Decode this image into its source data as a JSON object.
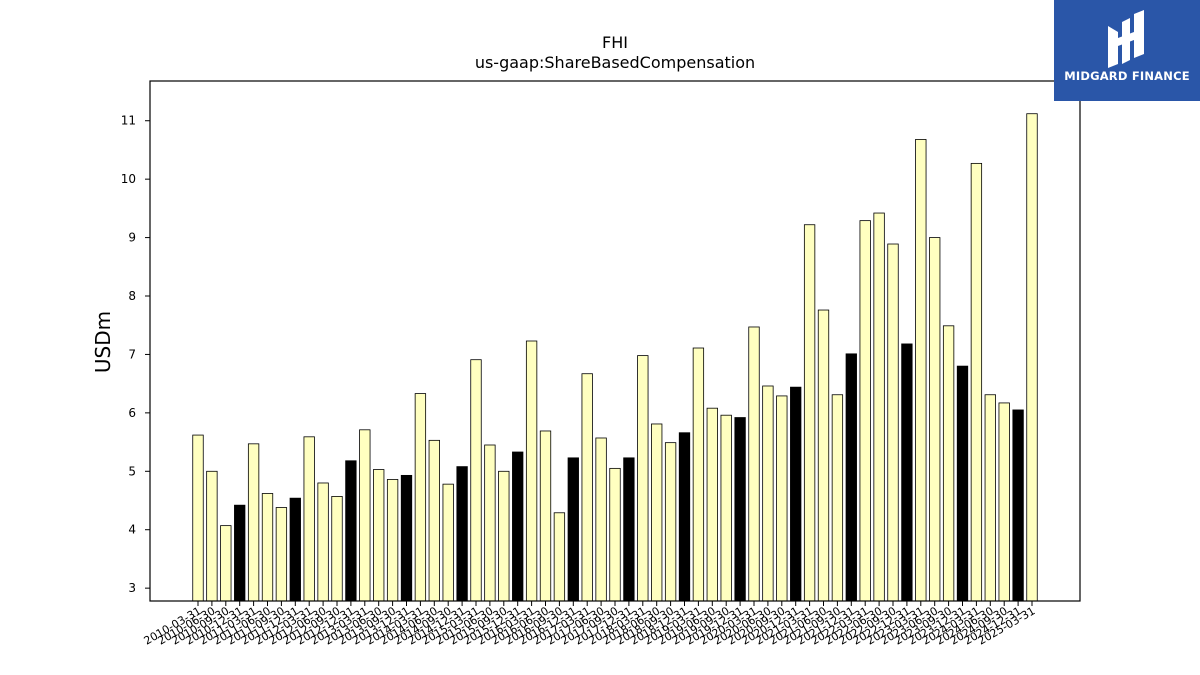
{
  "chart_data": {
    "type": "bar",
    "title": "FHI",
    "subtitle": "us-gaap:ShareBasedCompensation",
    "ylabel": "USDm",
    "xlabel": "",
    "ylim": [
      2.78,
      11.68
    ],
    "yticks": [
      3,
      4,
      5,
      6,
      7,
      8,
      9,
      10,
      11
    ],
    "grid": false,
    "bar_color": "#ffffc0",
    "highlight_color": "#000000",
    "categories": [
      "2010-03-31",
      "2010-06-30",
      "2010-09-30",
      "2010-12-31",
      "2011-03-31",
      "2011-06-30",
      "2011-09-30",
      "2011-12-31",
      "2012-03-31",
      "2012-06-30",
      "2012-09-30",
      "2012-12-31",
      "2013-03-31",
      "2013-06-30",
      "2013-09-30",
      "2013-12-31",
      "2014-03-31",
      "2014-06-30",
      "2014-09-30",
      "2014-12-31",
      "2015-03-31",
      "2015-06-30",
      "2015-09-30",
      "2015-12-31",
      "2016-03-31",
      "2016-06-30",
      "2016-09-30",
      "2016-12-31",
      "2017-03-31",
      "2017-06-30",
      "2017-09-30",
      "2017-12-31",
      "2018-03-31",
      "2018-06-30",
      "2018-09-30",
      "2018-12-31",
      "2019-03-31",
      "2019-06-30",
      "2019-09-30",
      "2019-12-31",
      "2020-03-31",
      "2020-06-30",
      "2020-09-30",
      "2020-12-31",
      "2021-03-31",
      "2021-06-30",
      "2021-09-30",
      "2021-12-31",
      "2022-03-31",
      "2022-06-30",
      "2022-09-30",
      "2022-12-31",
      "2023-03-31",
      "2023-06-30",
      "2023-09-30",
      "2023-12-31",
      "2024-03-31",
      "2024-06-30",
      "2024-09-30",
      "2024-12-31",
      "2025-03-31"
    ],
    "values": [
      5.62,
      5.0,
      4.07,
      4.42,
      5.47,
      4.62,
      4.38,
      4.54,
      5.59,
      4.8,
      4.57,
      5.18,
      5.71,
      5.03,
      4.86,
      4.93,
      6.33,
      5.53,
      4.78,
      5.08,
      6.91,
      5.45,
      5.0,
      5.33,
      7.23,
      5.69,
      4.29,
      5.23,
      6.67,
      5.57,
      5.05,
      5.23,
      6.98,
      5.81,
      5.49,
      5.66,
      7.11,
      6.08,
      5.96,
      5.92,
      7.47,
      6.46,
      6.29,
      6.44,
      9.22,
      7.76,
      6.31,
      7.01,
      9.29,
      9.42,
      8.89,
      7.18,
      10.68,
      9.0,
      7.49,
      6.8,
      10.27,
      6.31,
      6.17,
      6.05,
      11.12
    ],
    "highlighted": [
      false,
      false,
      false,
      true,
      false,
      false,
      false,
      true,
      false,
      false,
      false,
      true,
      false,
      false,
      false,
      true,
      false,
      false,
      false,
      true,
      false,
      false,
      false,
      true,
      false,
      false,
      false,
      true,
      false,
      false,
      false,
      true,
      false,
      false,
      false,
      true,
      false,
      false,
      false,
      true,
      false,
      false,
      false,
      true,
      false,
      false,
      false,
      true,
      false,
      false,
      false,
      true,
      false,
      false,
      false,
      true,
      false,
      false,
      false,
      true,
      false
    ]
  },
  "logo": {
    "text": "MIDGARD FINANCE",
    "background": "#2a56a8"
  }
}
